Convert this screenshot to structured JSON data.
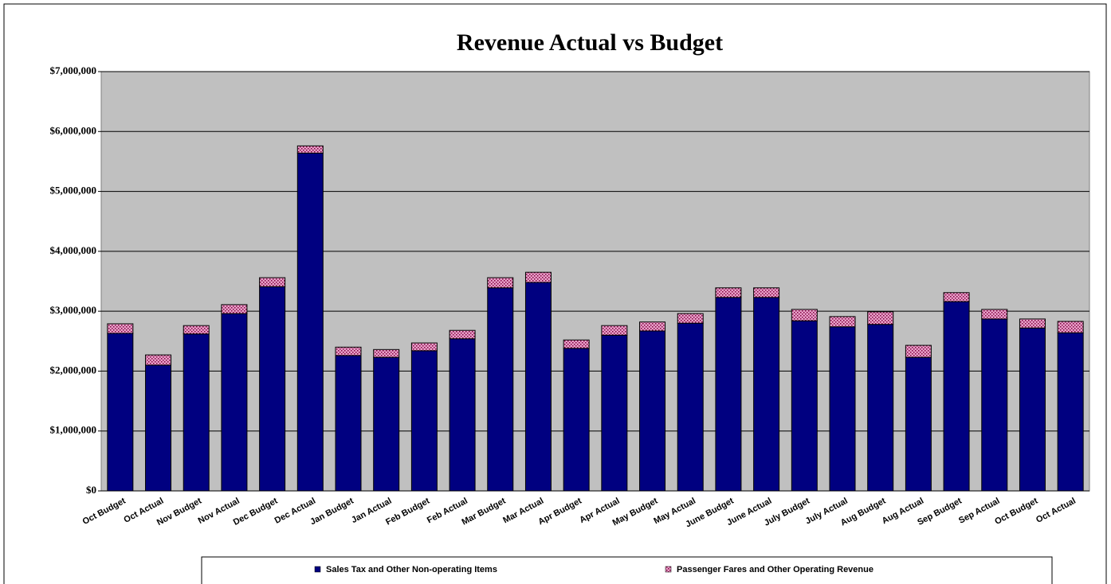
{
  "chart_data": {
    "type": "stacked-bar",
    "title": "Revenue Actual vs Budget",
    "categories": [
      "Oct Budget",
      "Oct Actual",
      "Nov Budget",
      "Nov Actual",
      "Dec Budget",
      "Dec Actual",
      "Jan Budget",
      "Jan Actual",
      "Feb Budget",
      "Feb Actual",
      "Mar Budget",
      "Mar Actual",
      "Apr Budget",
      "Apr Actual",
      "May Budget",
      "May Actual",
      "June Budget",
      "June Actual",
      "July Budget",
      "July Actual",
      "Aug Budget",
      "Aug Actual",
      "Sep Budget",
      "Sep Actual",
      "Oct Budget",
      "Oct Actual"
    ],
    "series": [
      {
        "name": "Sales Tax and Other Non-operating Items",
        "color": "#000080",
        "values": [
          2630000,
          2100000,
          2620000,
          2960000,
          3410000,
          5640000,
          2260000,
          2230000,
          2340000,
          2540000,
          3390000,
          3480000,
          2380000,
          2600000,
          2670000,
          2800000,
          3230000,
          3230000,
          2840000,
          2740000,
          2780000,
          2230000,
          3160000,
          2870000,
          2720000,
          2640000
        ]
      },
      {
        "name": "Passenger Fares and Other Operating Revenue",
        "color": "#e8a0c8",
        "values": [
          160000,
          170000,
          140000,
          150000,
          150000,
          120000,
          140000,
          130000,
          130000,
          140000,
          170000,
          170000,
          140000,
          160000,
          150000,
          160000,
          160000,
          160000,
          190000,
          170000,
          210000,
          200000,
          150000,
          160000,
          150000,
          190000
        ]
      }
    ],
    "ylim": [
      0,
      7000000
    ],
    "yticks": [
      {
        "value": 0,
        "label": "$0"
      },
      {
        "value": 1000000,
        "label": "$1,000,000"
      },
      {
        "value": 2000000,
        "label": "$2,000,000"
      },
      {
        "value": 3000000,
        "label": "$3,000,000"
      },
      {
        "value": 4000000,
        "label": "$4,000,000"
      },
      {
        "value": 5000000,
        "label": "$5,000,000"
      },
      {
        "value": 6000000,
        "label": "$6,000,000"
      },
      {
        "value": 7000000,
        "label": "$7,000,000"
      }
    ],
    "grid": true,
    "legend": "bottom"
  }
}
